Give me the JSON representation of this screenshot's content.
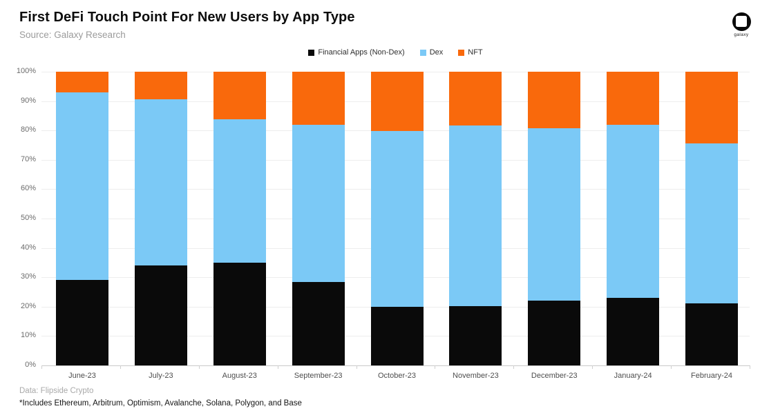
{
  "header": {
    "title": "First DeFi Touch Point For New Users by App Type",
    "source": "Source: Galaxy Research",
    "logo_text": "galaxy"
  },
  "footer": {
    "data_note": "Data: Flipside Crypto",
    "includes_note": "*Includes Ethereum, Arbitrum, Optimism, Avalanche, Solana, Polygon, and Base"
  },
  "colors": {
    "financial_apps": "#0a0a0a",
    "dex": "#7bc9f6",
    "nft": "#f9690c",
    "gridline": "#ededed",
    "baseline": "#c9c9c9"
  },
  "chart_data": {
    "type": "bar",
    "stacked": true,
    "stack_mode": "percent",
    "title": "First DeFi Touch Point For New Users by App Type",
    "xlabel": "",
    "ylabel": "",
    "ylim": [
      0,
      100
    ],
    "yticks": [
      0,
      10,
      20,
      30,
      40,
      50,
      60,
      70,
      80,
      90,
      100
    ],
    "ytick_suffix": "%",
    "grid": "horizontal",
    "legend_position": "top-center",
    "categories": [
      "June-23",
      "July-23",
      "August-23",
      "September-23",
      "October-23",
      "November-23",
      "December-23",
      "January-24",
      "February-24"
    ],
    "series": [
      {
        "name": "Financial Apps (Non-Dex)",
        "color": "#0a0a0a",
        "values": [
          29.2,
          34.0,
          35.0,
          28.5,
          20.0,
          20.3,
          22.0,
          23.0,
          21.2
        ]
      },
      {
        "name": "Dex",
        "color": "#7bc9f6",
        "values": [
          63.8,
          56.7,
          48.8,
          53.5,
          59.8,
          61.5,
          58.7,
          59.0,
          54.5
        ]
      },
      {
        "name": "NFT",
        "color": "#f9690c",
        "values": [
          7.0,
          9.3,
          16.2,
          18.0,
          20.2,
          18.2,
          19.3,
          18.0,
          24.3
        ]
      }
    ]
  }
}
